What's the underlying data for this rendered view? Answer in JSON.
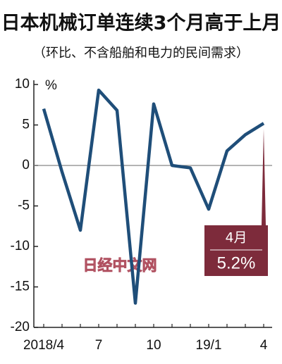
{
  "chart_data": {
    "type": "line",
    "title": "日本机械订单连续3个月高于上月",
    "subtitle": "（环比、不含船舶和电力的民间需求）",
    "y_unit": "%",
    "categories": [
      "2018/4",
      null,
      null,
      "7",
      null,
      null,
      "10",
      null,
      null,
      "19/1",
      null,
      null,
      "4"
    ],
    "series": [
      {
        "name": null,
        "color": "#1f4e79",
        "values": [
          7.0,
          -0.8,
          -8.0,
          9.3,
          6.8,
          -17.0,
          7.6,
          0.0,
          -0.3,
          -5.4,
          1.8,
          3.8,
          5.2
        ],
        "value_labels": [
          null,
          null,
          null,
          null,
          null,
          null,
          null,
          null,
          null,
          null,
          null,
          null,
          "5.2%"
        ]
      }
    ],
    "annotation": "4月",
    "annotation_color": "#7d2b3b",
    "watermark": "日经中文网",
    "ylim": [
      -20,
      10
    ],
    "yticks": [
      10,
      5,
      0,
      -5,
      -10,
      -15,
      -20
    ]
  }
}
